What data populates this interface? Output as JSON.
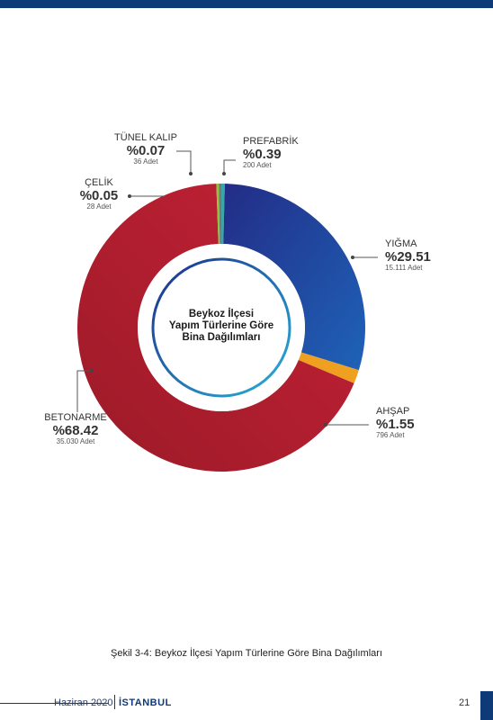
{
  "chart_data": {
    "type": "pie",
    "donut": true,
    "center_title": [
      "Beykoz İlçesi",
      "Yapım Türlerine Göre",
      "Bina Dağılımları"
    ],
    "series": [
      {
        "name": "PREFABRİK",
        "percent_label": "%0.39",
        "percent": 0.39,
        "count_label": "200 Adet",
        "count": 200,
        "color": "#3aa6a8"
      },
      {
        "name": "YIĞMA",
        "percent_label": "%29.51",
        "percent": 29.51,
        "count_label": "15.111 Adet",
        "count": 15111,
        "color": "#2a3d99"
      },
      {
        "name": "AHŞAP",
        "percent_label": "%1.55",
        "percent": 1.55,
        "count_label": "796 Adet",
        "count": 796,
        "color": "#f0a020"
      },
      {
        "name": "BETONARME",
        "percent_label": "%68.42",
        "percent": 68.42,
        "count_label": "35.030 Adet",
        "count": 35030,
        "color": "#b01e2e"
      },
      {
        "name": "ÇELİK",
        "percent_label": "%0.05",
        "percent": 0.05,
        "count_label": "28 Adet",
        "count": 28,
        "color": "#8cc43c"
      },
      {
        "name": "TÜNEL KALIP",
        "percent_label": "%0.07",
        "percent": 0.07,
        "count_label": "36 Adet",
        "count": 36,
        "color": "#777777"
      }
    ]
  },
  "caption": "Şekil 3-4: Beykoz İlçesi Yapım Türlerine Göre Bina Dağılımları",
  "footer": {
    "date": "Haziran 2020",
    "brand": "İSTANBUL",
    "page": "21"
  },
  "colors": {
    "brand": "#0e3a78"
  }
}
